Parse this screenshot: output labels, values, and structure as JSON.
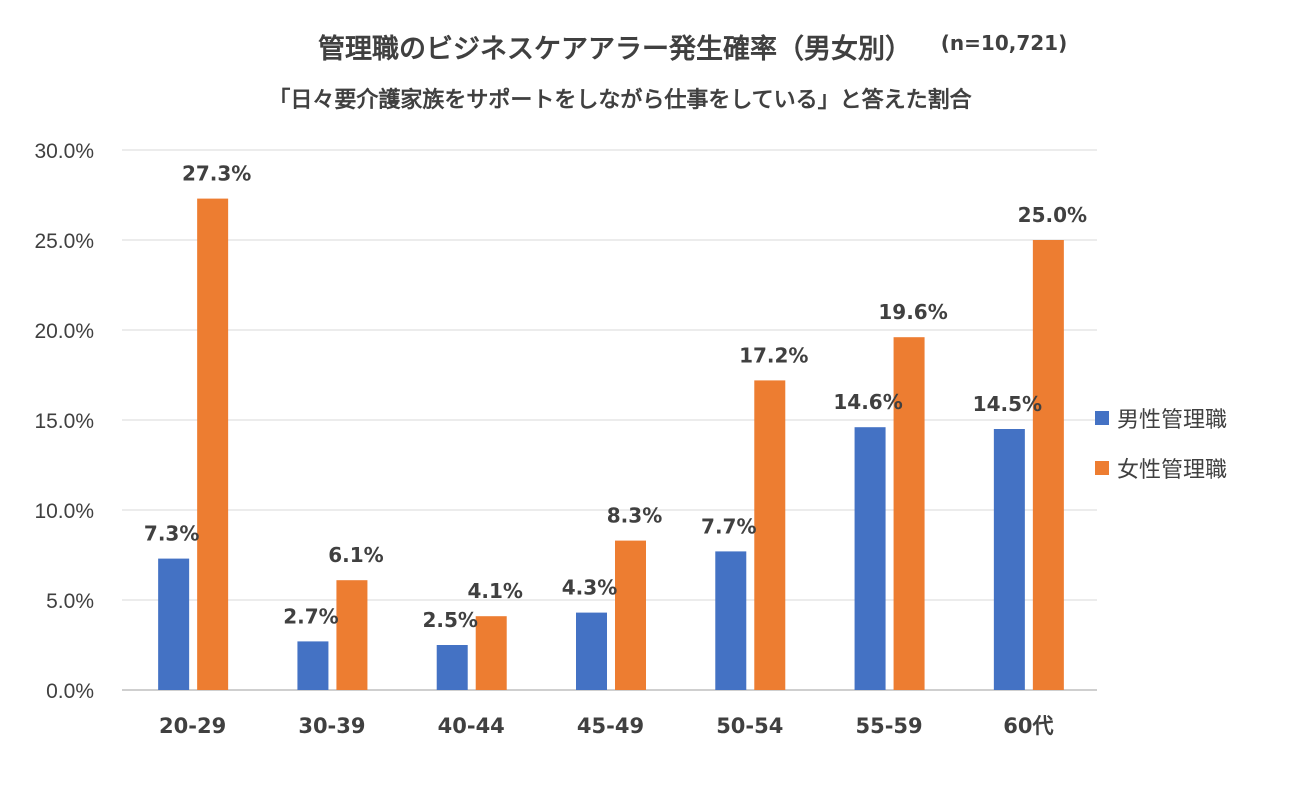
{
  "chart_data": {
    "type": "bar",
    "title": "管理職のビジネスケアアラー発生確率（男女別）",
    "title_note": "(n=10,721)",
    "subtitle": "「日々要介護家族をサポートをしながら仕事をしている」と答えた割合",
    "categories": [
      "20-29",
      "30-39",
      "40-44",
      "45-49",
      "50-54",
      "55-59",
      "60代"
    ],
    "series": [
      {
        "name": "男性管理職",
        "color": "#4472C4",
        "values": [
          7.3,
          2.7,
          2.5,
          4.3,
          7.7,
          14.6,
          14.5
        ],
        "labels": [
          "7.3%",
          "2.7%",
          "2.5%",
          "4.3%",
          "7.7%",
          "14.6%",
          "14.5%"
        ]
      },
      {
        "name": "女性管理職",
        "color": "#ED7D31",
        "values": [
          27.3,
          6.1,
          4.1,
          8.3,
          17.2,
          19.6,
          25.0
        ],
        "labels": [
          "27.3%",
          "6.1%",
          "4.1%",
          "8.3%",
          "17.2%",
          "19.6%",
          "25.0%"
        ]
      }
    ],
    "ylim": [
      0,
      30
    ],
    "yticks": [
      0,
      5,
      10,
      15,
      20,
      25,
      30
    ],
    "ytick_labels": [
      "0.0%",
      "5.0%",
      "10.0%",
      "15.0%",
      "20.0%",
      "25.0%",
      "30.0%"
    ],
    "grid": true,
    "legend_position": "right",
    "xlabel": "",
    "ylabel": ""
  }
}
